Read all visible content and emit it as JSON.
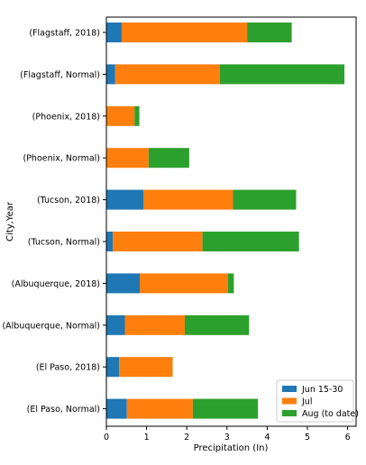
{
  "chart_data": {
    "type": "bar",
    "orientation": "horizontal",
    "stacked": true,
    "title": "",
    "xlabel": "Precipitation (In)",
    "ylabel": "City,Year",
    "xlim": [
      0,
      6.2
    ],
    "xticks": [
      0,
      1,
      2,
      3,
      4,
      5,
      6
    ],
    "grid": false,
    "legend_position": "lower right",
    "categories": [
      "(Flagstaff, 2018)",
      "(Flagstaff, Normal)",
      "(Phoenix, 2018)",
      "(Phoenix, Normal)",
      "(Tucson, 2018)",
      "(Tucson, Normal)",
      "(Albuquerque, 2018)",
      "(Albuquerque, Normal)",
      "(El Paso, 2018)",
      "(El Paso, Normal)"
    ],
    "series": [
      {
        "name": "Jun 15-30",
        "color": "#1f77b4",
        "values": [
          0.38,
          0.22,
          0.0,
          0.0,
          0.92,
          0.16,
          0.83,
          0.46,
          0.32,
          0.51
        ]
      },
      {
        "name": "Jul",
        "color": "#ff7f0e",
        "values": [
          3.12,
          2.6,
          0.7,
          1.05,
          2.23,
          2.23,
          2.19,
          1.49,
          1.33,
          1.64
        ]
      },
      {
        "name": "Aug (to date)",
        "color": "#2ca02c",
        "values": [
          1.11,
          3.1,
          0.12,
          1.01,
          1.57,
          2.4,
          0.15,
          1.6,
          0.0,
          1.62
        ]
      }
    ]
  }
}
